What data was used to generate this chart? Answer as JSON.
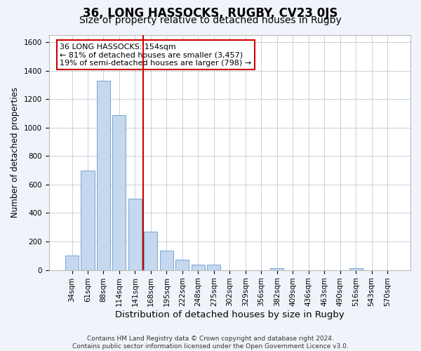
{
  "title1": "36, LONG HASSOCKS, RUGBY, CV23 0JS",
  "title2": "Size of property relative to detached houses in Rugby",
  "xlabel": "Distribution of detached houses by size in Rugby",
  "ylabel": "Number of detached properties",
  "categories": [
    "34sqm",
    "61sqm",
    "88sqm",
    "114sqm",
    "141sqm",
    "168sqm",
    "195sqm",
    "222sqm",
    "248sqm",
    "275sqm",
    "302sqm",
    "329sqm",
    "356sqm",
    "382sqm",
    "409sqm",
    "436sqm",
    "463sqm",
    "490sqm",
    "516sqm",
    "543sqm",
    "570sqm"
  ],
  "values": [
    100,
    700,
    1330,
    1090,
    500,
    270,
    135,
    70,
    35,
    35,
    0,
    0,
    0,
    15,
    0,
    0,
    0,
    0,
    15,
    0,
    0
  ],
  "bar_color": "#c5d8ef",
  "bar_edge_color": "#6699cc",
  "vline_x": 4.5,
  "vline_color": "#cc0000",
  "annotation_text": "36 LONG HASSOCKS: 154sqm\n← 81% of detached houses are smaller (3,457)\n19% of semi-detached houses are larger (798) →",
  "annotation_box_color": "white",
  "annotation_box_edge": "#cc0000",
  "ylim": [
    0,
    1650
  ],
  "yticks": [
    0,
    200,
    400,
    600,
    800,
    1000,
    1200,
    1400,
    1600
  ],
  "footnote": "Contains HM Land Registry data © Crown copyright and database right 2024.\nContains public sector information licensed under the Open Government Licence v3.0.",
  "bg_color": "#f0f4fa",
  "plot_bg_color": "#ffffff",
  "grid_color": "#c8d0dc",
  "title1_fontsize": 12,
  "title2_fontsize": 10,
  "xlabel_fontsize": 9.5,
  "ylabel_fontsize": 8.5,
  "tick_fontsize": 7.5,
  "footnote_fontsize": 6.5,
  "annot_fontsize": 8
}
